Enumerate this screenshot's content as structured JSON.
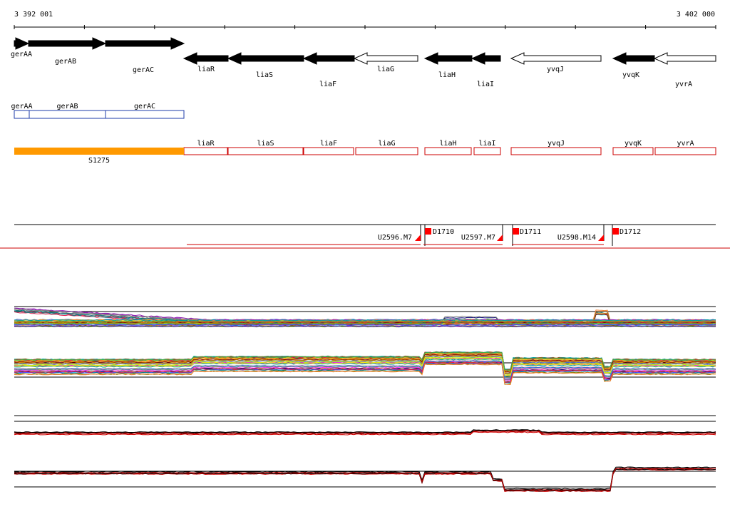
{
  "ruler": {
    "start_label": "3 392 001",
    "end_label": "3 402 000"
  },
  "colors": {
    "gene_fill": "#000000",
    "gene_outline_fill": "#ffffff",
    "annotation_stroke": "#1c3ba8",
    "segment_stroke": "#cc0000",
    "orange_bar": "#ff9900",
    "marker_red": "#ff0000",
    "divider_red": "#cc0000"
  },
  "genes": [
    {
      "name": "gerAA",
      "strand": "+",
      "filled": true
    },
    {
      "name": "gerAB",
      "strand": "+",
      "filled": true
    },
    {
      "name": "gerAC",
      "strand": "+",
      "filled": true
    },
    {
      "name": "liaR",
      "strand": "-",
      "filled": true
    },
    {
      "name": "liaS",
      "strand": "-",
      "filled": true
    },
    {
      "name": "liaF",
      "strand": "-",
      "filled": true
    },
    {
      "name": "liaG",
      "strand": "-",
      "filled": false
    },
    {
      "name": "liaH",
      "strand": "-",
      "filled": true
    },
    {
      "name": "liaI",
      "strand": "-",
      "filled": true
    },
    {
      "name": "yvqJ",
      "strand": "-",
      "filled": false
    },
    {
      "name": "yvqK",
      "strand": "-",
      "filled": true
    },
    {
      "name": "yvrA",
      "strand": "-",
      "filled": false
    }
  ],
  "annotation_boxes": [
    "gerAA",
    "gerAB",
    "gerAC"
  ],
  "segment_boxes": [
    "liaR",
    "liaS",
    "liaF",
    "liaG",
    "liaH",
    "liaI",
    "yvqJ",
    "yvqK",
    "yvrA"
  ],
  "orange_segment": "S1275",
  "promoters": [
    {
      "left_label": "U2596.M7",
      "right_label": "D1710"
    },
    {
      "left_label": "U2597.M7",
      "right_label": "D1711"
    },
    {
      "left_label": "U2598.M14",
      "right_label": "D1712"
    }
  ],
  "expression_line_colors": [
    "#e6194b",
    "#3cb44b",
    "#ffe119",
    "#4363d8",
    "#f58231",
    "#911eb4",
    "#46f0f0",
    "#f032e6",
    "#bcf60c",
    "#fabebe",
    "#008080",
    "#9a6324",
    "#800000",
    "#808000",
    "#000075",
    "#808080",
    "#aa6e28",
    "#00a0a0",
    "#c08000",
    "#5050ff"
  ],
  "summary_line_colors": [
    "#000000",
    "#d00000"
  ]
}
